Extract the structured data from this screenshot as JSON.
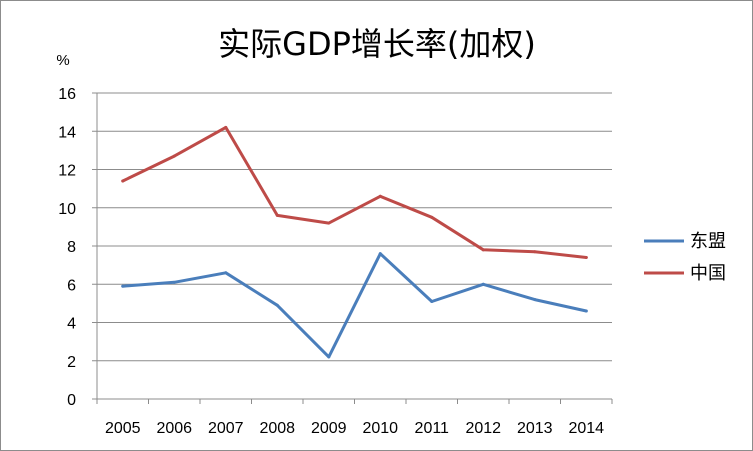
{
  "chart_data": {
    "type": "line",
    "title": "实际GDP增长率(加权)",
    "ylabel": "%",
    "xlabel": "",
    "categories": [
      "2005",
      "2006",
      "2007",
      "2008",
      "2009",
      "2010",
      "2011",
      "2012",
      "2013",
      "2014"
    ],
    "ylim": [
      0,
      16
    ],
    "yticks": [
      0,
      2,
      4,
      6,
      8,
      10,
      12,
      14,
      16
    ],
    "grid": true,
    "legend_position": "right",
    "series": [
      {
        "name": "东盟",
        "color": "#4a7ebb",
        "values": [
          5.9,
          6.1,
          6.6,
          4.9,
          2.2,
          7.6,
          5.1,
          6.0,
          5.2,
          4.6
        ]
      },
      {
        "name": "中国",
        "color": "#be4b48",
        "values": [
          11.4,
          12.7,
          14.2,
          9.6,
          9.2,
          10.6,
          9.5,
          7.8,
          7.7,
          7.4
        ]
      }
    ]
  }
}
